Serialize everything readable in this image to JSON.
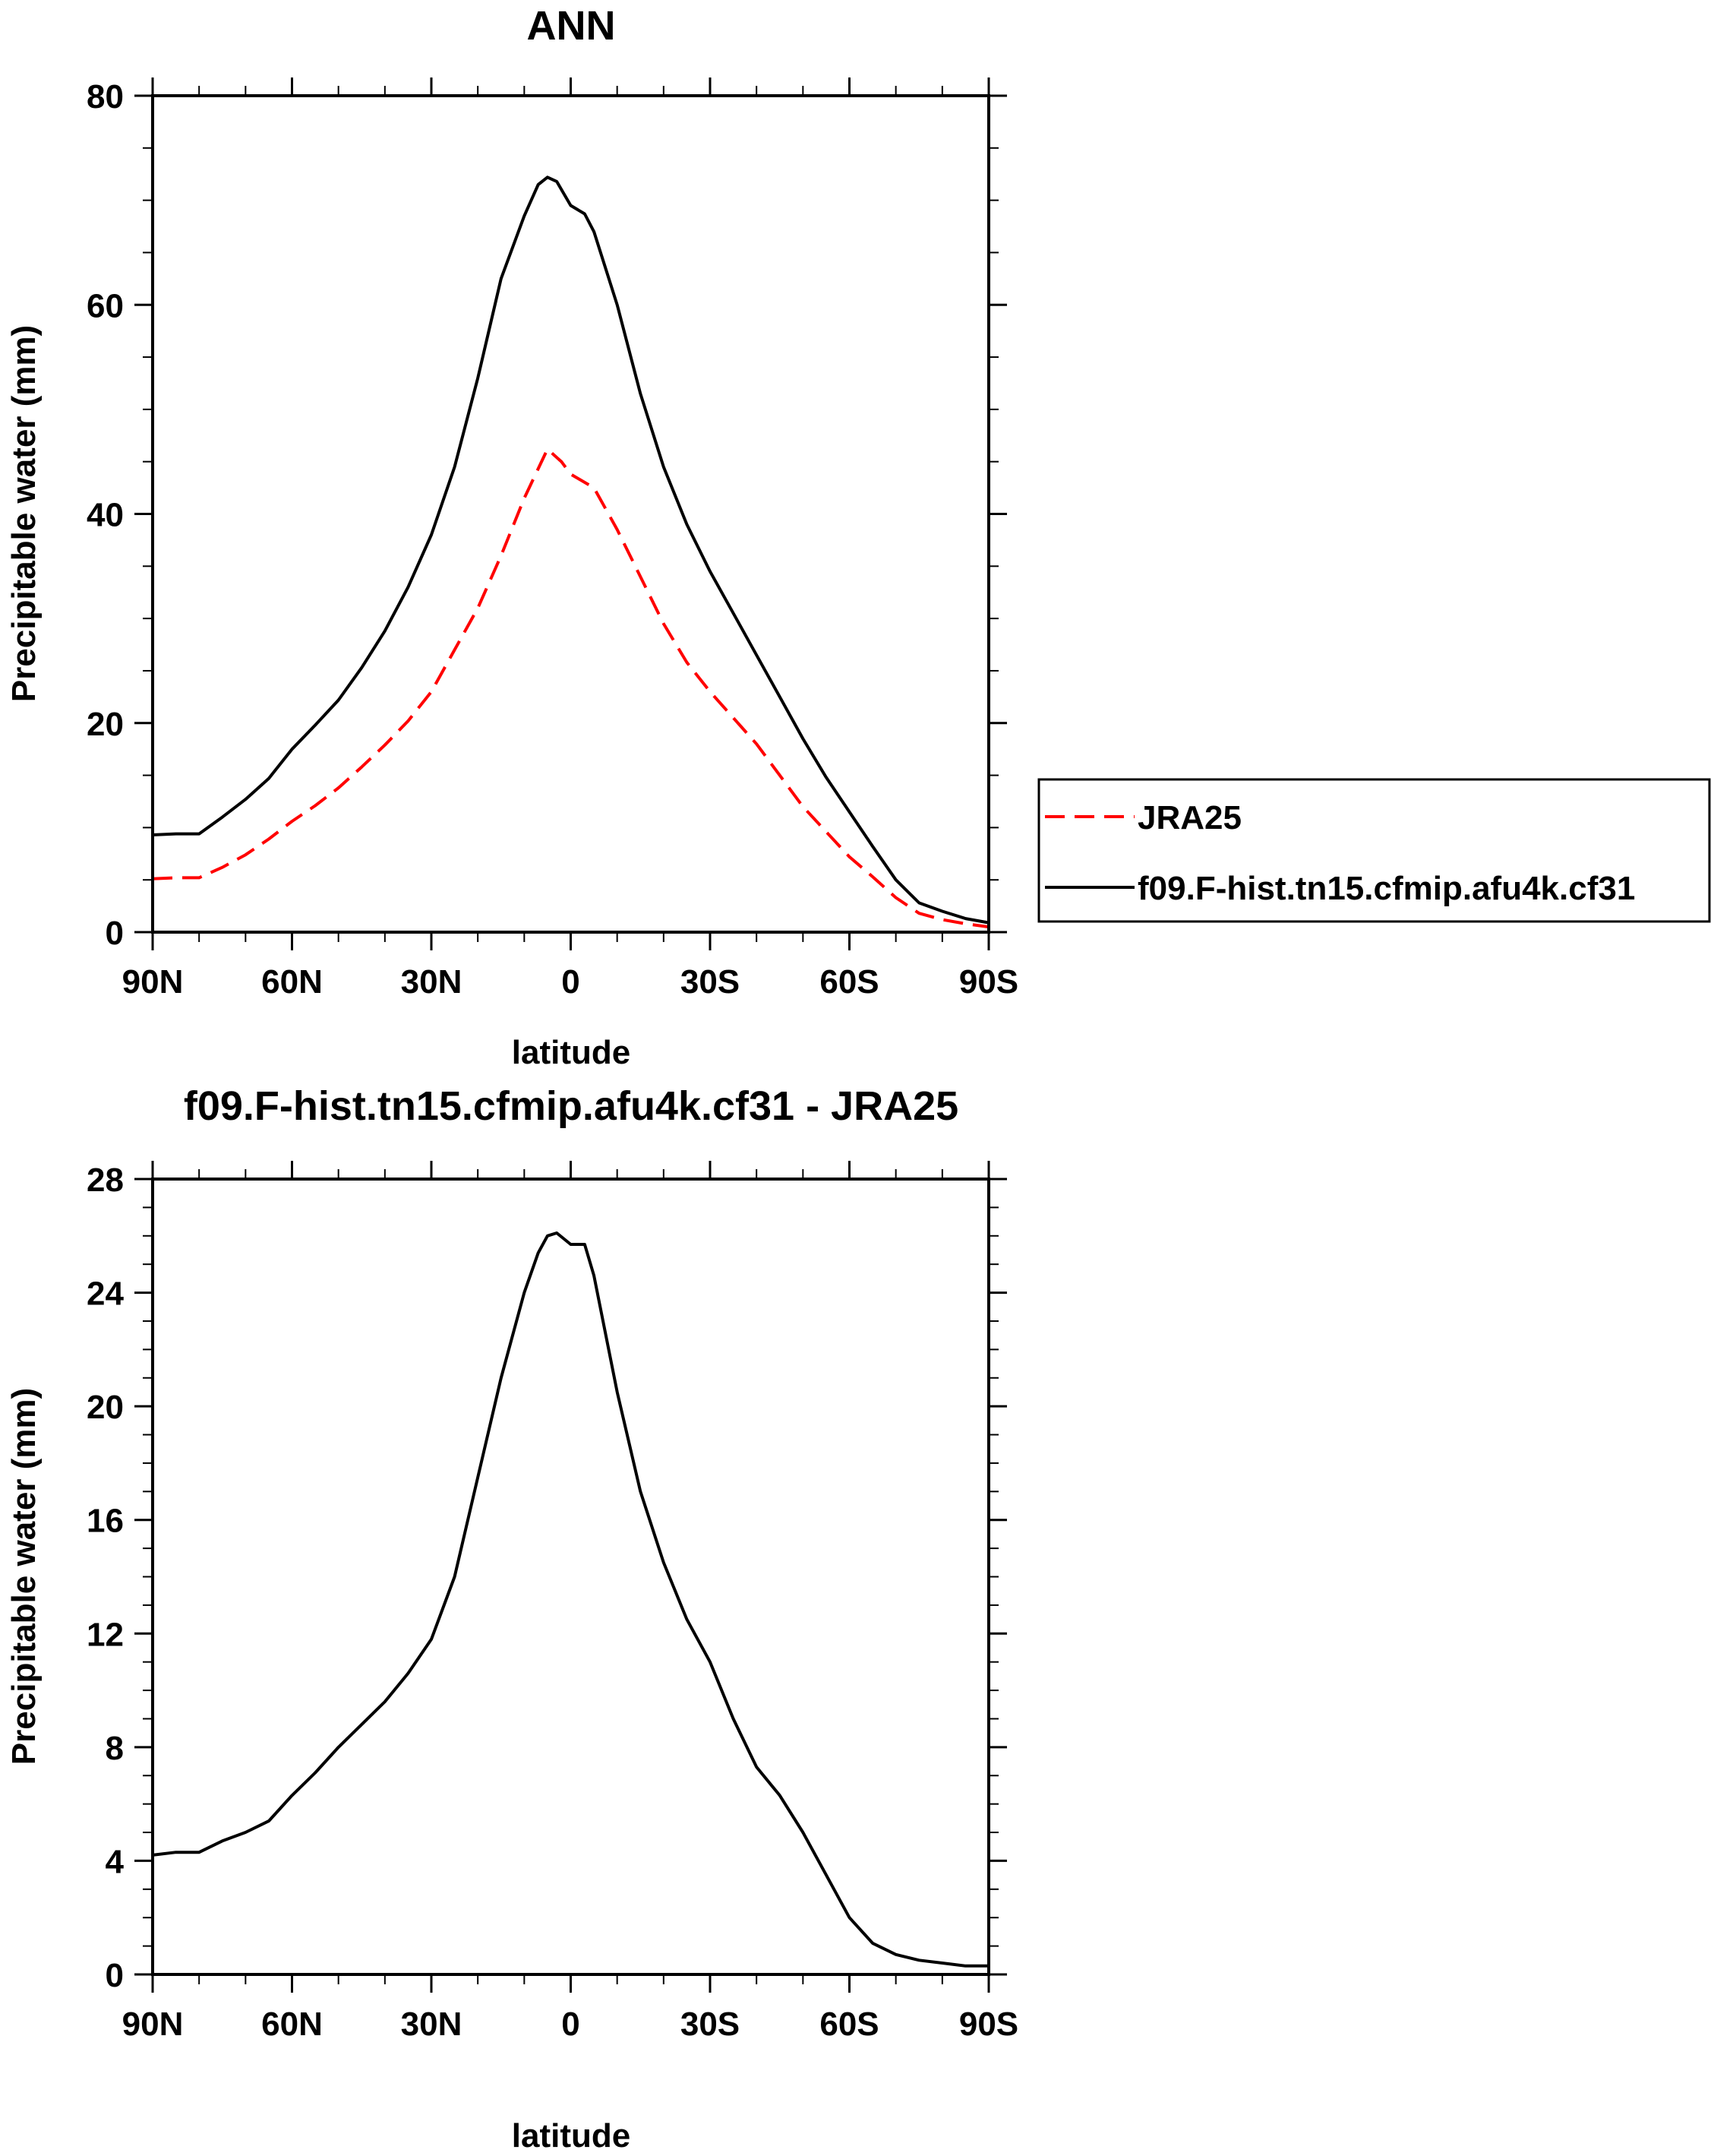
{
  "chart_data": [
    {
      "type": "line",
      "title": "ANN",
      "xlabel": "latitude",
      "ylabel": "Precipitable water (mm)",
      "xlim": [
        90,
        -90
      ],
      "ylim": [
        0,
        80
      ],
      "xticks": [
        90,
        60,
        30,
        0,
        -30,
        -60,
        -90
      ],
      "xtick_labels": [
        "90N",
        "60N",
        "30N",
        "0",
        "30S",
        "60S",
        "90S"
      ],
      "yticks": [
        0,
        20,
        40,
        60,
        80
      ],
      "ytick_labels": [
        "0",
        "20",
        "40",
        "60",
        "80"
      ],
      "grid": false,
      "legend": {
        "placement": "right",
        "entries": [
          "JRA25",
          "f09.F-hist.tn15.cfmip.afu4k.cf31"
        ]
      },
      "series": [
        {
          "name": "JRA25",
          "color": "#ff0000",
          "style": "dashed",
          "x": [
            90,
            85,
            80,
            75,
            70,
            65,
            60,
            55,
            50,
            45,
            40,
            35,
            30,
            25,
            20,
            15,
            10,
            5,
            2,
            0,
            -5,
            -10,
            -15,
            -20,
            -25,
            -30,
            -35,
            -40,
            -45,
            -50,
            -55,
            -60,
            -65,
            -70,
            -75,
            -80,
            -85,
            -90
          ],
          "values": [
            5.1,
            5.2,
            5.2,
            6.2,
            7.4,
            8.9,
            10.6,
            12.1,
            13.8,
            15.8,
            17.9,
            20.2,
            23.0,
            27.0,
            31.0,
            36.0,
            41.5,
            46.2,
            45.0,
            43.8,
            42.5,
            38.5,
            34.0,
            29.5,
            25.8,
            23.0,
            20.5,
            18.0,
            15.0,
            12.0,
            9.6,
            7.2,
            5.3,
            3.3,
            1.8,
            1.2,
            0.8,
            0.5
          ]
        },
        {
          "name": "f09.F-hist.tn15.cfmip.afu4k.cf31",
          "color": "#000000",
          "style": "solid",
          "x": [
            90,
            85,
            80,
            75,
            70,
            65,
            60,
            55,
            50,
            45,
            40,
            35,
            30,
            25,
            20,
            15,
            10,
            7,
            5,
            3,
            0,
            -3,
            -5,
            -10,
            -15,
            -20,
            -25,
            -30,
            -35,
            -40,
            -45,
            -50,
            -55,
            -60,
            -65,
            -70,
            -75,
            -80,
            -85,
            -90
          ],
          "values": [
            9.3,
            9.4,
            9.4,
            11.0,
            12.7,
            14.7,
            17.5,
            19.8,
            22.2,
            25.3,
            28.8,
            33.0,
            38.0,
            44.5,
            53.0,
            62.5,
            68.5,
            71.5,
            72.2,
            71.8,
            69.5,
            68.7,
            67.0,
            60.0,
            51.5,
            44.5,
            39.0,
            34.5,
            30.5,
            26.5,
            22.5,
            18.5,
            14.8,
            11.5,
            8.2,
            5.0,
            2.8,
            2.0,
            1.3,
            0.9
          ]
        }
      ]
    },
    {
      "type": "line",
      "title": "f09.F-hist.tn15.cfmip.afu4k.cf31 - JRA25",
      "xlabel": "latitude",
      "ylabel": "Precipitable water (mm)",
      "xlim": [
        90,
        -90
      ],
      "ylim": [
        0,
        28
      ],
      "xticks": [
        90,
        60,
        30,
        0,
        -30,
        -60,
        -90
      ],
      "xtick_labels": [
        "90N",
        "60N",
        "30N",
        "0",
        "30S",
        "60S",
        "90S"
      ],
      "yticks": [
        0,
        4,
        8,
        12,
        16,
        20,
        24,
        28
      ],
      "ytick_labels": [
        "0",
        "4",
        "8",
        "12",
        "16",
        "20",
        "24",
        "28"
      ],
      "grid": false,
      "series": [
        {
          "name": "f09.F-hist.tn15.cfmip.afu4k.cf31 - JRA25",
          "color": "#000000",
          "style": "solid",
          "x": [
            90,
            85,
            80,
            75,
            70,
            65,
            60,
            55,
            50,
            45,
            40,
            35,
            30,
            25,
            20,
            15,
            10,
            7,
            5,
            3,
            0,
            -3,
            -5,
            -10,
            -15,
            -20,
            -25,
            -30,
            -35,
            -40,
            -45,
            -50,
            -55,
            -60,
            -65,
            -70,
            -75,
            -80,
            -85,
            -90
          ],
          "values": [
            4.2,
            4.3,
            4.3,
            4.7,
            5.0,
            5.4,
            6.3,
            7.1,
            8.0,
            8.8,
            9.6,
            10.6,
            11.8,
            14.0,
            17.5,
            21.0,
            24.0,
            25.4,
            26.0,
            26.1,
            25.7,
            25.7,
            24.6,
            20.5,
            17.0,
            14.5,
            12.5,
            11.0,
            9.0,
            7.3,
            6.3,
            5.0,
            3.5,
            2.0,
            1.1,
            0.7,
            0.5,
            0.4,
            0.3,
            0.3
          ]
        }
      ]
    }
  ]
}
